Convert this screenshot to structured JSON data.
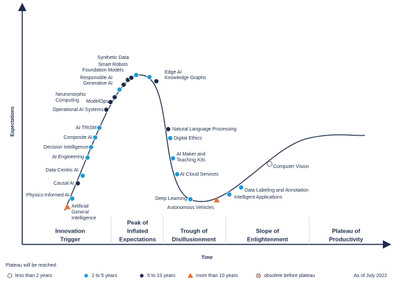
{
  "title_axis_y": "Expectations",
  "title_axis_x": "Time",
  "phases": [
    [
      "Innovation",
      "Trigger"
    ],
    [
      "Peak of",
      "Inflated",
      "Expectations"
    ],
    [
      "Trough of",
      "Disillusionment"
    ],
    [
      "Slope of",
      "Enlightenment"
    ],
    [
      "Plateau of",
      "Productivity"
    ]
  ],
  "legend": {
    "title": "Plateau will be reached:",
    "items": [
      {
        "label": "less than 2 years",
        "color": "#ffffff",
        "shape": "circle"
      },
      {
        "label": "2 to 5 years",
        "color": "#1a9bd7",
        "shape": "circle"
      },
      {
        "label": "5 to 10 years",
        "color": "#1d2b4c",
        "shape": "circle"
      },
      {
        "label": "more than 10 years",
        "color": "#e8733a",
        "shape": "triangle"
      },
      {
        "label": "obsolete before plateau",
        "color": "#e8733a",
        "shape": "cross"
      }
    ]
  },
  "as_of": "As of July 2022",
  "technologies": [
    {
      "label": [
        "Artificial",
        "General",
        "Intelligence"
      ],
      "status": "more than 10 years"
    },
    {
      "label": [
        "Physics-Informed AI"
      ],
      "status": "2 to 5 years"
    },
    {
      "label": [
        "Causal AI"
      ],
      "status": "5 to 10 years"
    },
    {
      "label": [
        "Data-Centric AI"
      ],
      "status": "2 to 5 years"
    },
    {
      "label": [
        "AI Engineering"
      ],
      "status": "2 to 5 years"
    },
    {
      "label": [
        "Decision Intelligence"
      ],
      "status": "2 to 5 years"
    },
    {
      "label": [
        "Composite AI"
      ],
      "status": "2 to 5 years"
    },
    {
      "label": [
        "AI TRiSM"
      ],
      "status": "2 to 5 years"
    },
    {
      "label": [
        "Operational AI Systems"
      ],
      "status": "5 to 10 years"
    },
    {
      "label": [
        "Neuromorphic",
        "Computing"
      ],
      "status": "5 to 10 years"
    },
    {
      "label": [
        "ModelOps"
      ],
      "status": "5 to 10 years"
    },
    {
      "label": [
        "Generative AI"
      ],
      "status": "2 to 5 years"
    },
    {
      "label": [
        "Responsible AI"
      ],
      "status": "5 to 10 years"
    },
    {
      "label": [
        "Foundation Models"
      ],
      "status": "5 to 10 years"
    },
    {
      "label": [
        "Smart Robots"
      ],
      "status": "5 to 10 years"
    },
    {
      "label": [
        "Synthetic Data"
      ],
      "status": "2 to 5 years"
    },
    {
      "label": [
        "Knowledge Graphs"
      ],
      "status": "2 to 5 years"
    },
    {
      "label": [
        "Edge AI"
      ],
      "status": "5 to 10 years"
    },
    {
      "label": [
        "Natural Language Processing"
      ],
      "status": "5 to 10 years"
    },
    {
      "label": [
        "Digital Ethics"
      ],
      "status": "2 to 5 years"
    },
    {
      "label": [
        "AI Maker and",
        "Teaching Kits"
      ],
      "status": "2 to 5 years"
    },
    {
      "label": [
        "AI Cloud Services"
      ],
      "status": "2 to 5 years"
    },
    {
      "label": [
        "Deep Learning"
      ],
      "status": "2 to 5 years"
    },
    {
      "label": [
        "Autonomous Vehicles"
      ],
      "status": "more than 10 years"
    },
    {
      "label": [
        "Intelligent Applications"
      ],
      "status": "2 to 5 years"
    },
    {
      "label": [
        "Data Labeling and Annotation"
      ],
      "status": "2 to 5 years"
    },
    {
      "label": [
        "Computer Vision"
      ],
      "status": "less than 2 years"
    }
  ]
}
